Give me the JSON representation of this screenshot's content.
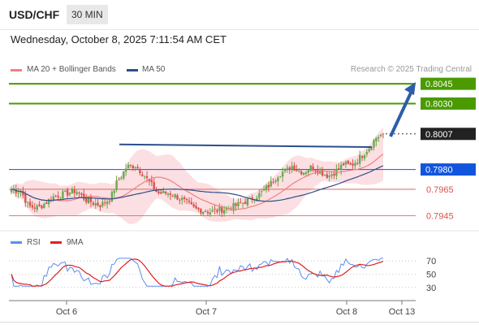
{
  "header": {
    "symbol": "USD/CHF",
    "timeframe": "30 MIN"
  },
  "datetime": "Wednesday, October 8, 2025 7:11:54 AM CET",
  "legend": {
    "ma20_label": "MA 20 + Bollinger Bands",
    "ma50_label": "MA 50"
  },
  "credit": "Research © 2025 Trading Central",
  "rsi_legend": {
    "rsi_label": "RSI",
    "ma_label": "9MA"
  },
  "colors": {
    "up_candle": "#6aa84f",
    "down_candle": "#d9534f",
    "ma20": "#f08080",
    "bollinger_fill": "#fbd9dd",
    "ma50": "#2c4f8a",
    "target": "#4a9a00",
    "pivot": "#1155dd",
    "support": "#d9534f",
    "rsi": "#5b8def",
    "rsi_ma": "#e02020",
    "arrow": "#2d5da8"
  },
  "chart_data": [
    {
      "type": "candlestick",
      "title": "USD/CHF",
      "x_labels": [
        "Oct 6",
        "Oct 7",
        "Oct 8",
        "Oct 13"
      ],
      "ylim": [
        0.7936,
        0.805
      ],
      "price_levels": [
        {
          "label": "0.8045",
          "value": 0.8045,
          "kind": "target"
        },
        {
          "label": "0.8030",
          "value": 0.803,
          "kind": "target"
        },
        {
          "label": "0.8007",
          "value": 0.8007,
          "kind": "last"
        },
        {
          "label": "0.7980",
          "value": 0.798,
          "kind": "pivot"
        },
        {
          "label": "0.7965",
          "value": 0.7965,
          "kind": "support"
        },
        {
          "label": "0.7945",
          "value": 0.7945,
          "kind": "support"
        }
      ],
      "resistance_trendline": {
        "x": [
          0,
          1
        ],
        "y": [
          0.7999,
          0.7997
        ]
      },
      "projection_arrow": {
        "from": 0.8005,
        "to": 0.8045
      },
      "series": [
        {
          "name": "MA 20 + Bollinger Bands",
          "key": "ma20"
        },
        {
          "name": "MA 50",
          "key": "ma50"
        }
      ]
    },
    {
      "type": "line",
      "series": [
        {
          "name": "RSI"
        },
        {
          "name": "9MA"
        }
      ],
      "y_ticks": [
        "70",
        "50",
        "30"
      ],
      "ylim": [
        20,
        80
      ]
    }
  ]
}
